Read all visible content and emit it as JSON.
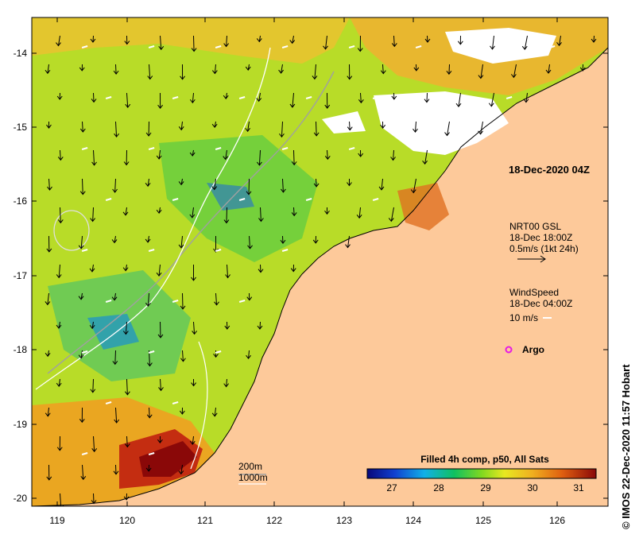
{
  "map": {
    "valid_time_label": "18-Dec-2020 04Z",
    "y_axis_ticks": [
      "-14",
      "-15",
      "-16",
      "-17",
      "-18",
      "-19",
      "-20"
    ],
    "x_axis_ticks": [
      "119",
      "120",
      "121",
      "122",
      "123",
      "124",
      "125",
      "126"
    ],
    "current_legend": {
      "line1": "NRT00 GSL",
      "line2": "18-Dec 18:00Z",
      "line3": "0.5m/s (1kt 24h)"
    },
    "wind_legend": {
      "line1": "WindSpeed",
      "line2": "18-Dec 04:00Z",
      "line3": "10 m/s"
    },
    "argo_label": "Argo",
    "depth_legend": {
      "line1": "200m",
      "line2": "1000m"
    },
    "colorbar": {
      "title": "Filled 4h comp, p50, All Sats",
      "ticks": [
        "27",
        "28",
        "29",
        "30",
        "31"
      ]
    },
    "credit": "© IMOS 22-Dec-2020 11:57 Hobart",
    "colors": {
      "land": "#fdc99a",
      "cloud": "#ffffff",
      "argo": "#e619e6"
    }
  }
}
